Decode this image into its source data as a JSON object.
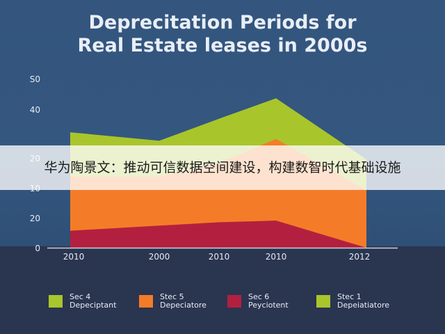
{
  "chart_data": {
    "type": "area",
    "title_lines": [
      "Deprecitation Periods for",
      "Real Estate leases in 2000s"
    ],
    "categories": [
      "2010",
      "2000",
      "2010",
      "2010",
      "2012"
    ],
    "y_tick_labels": [
      "0",
      "20",
      "10",
      "20",
      "40",
      "S0"
    ],
    "ylim": [
      0,
      50
    ],
    "series": [
      {
        "name": "Pey ciotent",
        "legend_line1": "Sec 6",
        "legend_line2": "Peyciotent",
        "color": "#b3203f",
        "values": [
          5,
          6.5,
          7.5,
          8,
          0
        ]
      },
      {
        "name": "Depeciatore",
        "legend_line1": "Stec 5",
        "legend_line2": "Depeciatore",
        "color": "#f47c28",
        "values": [
          21,
          21,
          25,
          32,
          17
        ]
      },
      {
        "name": "Depciptant",
        "legend_line1": "Sec 4",
        "legend_line2": "Depeciptant",
        "color": "#a9c52c",
        "values": [
          34,
          31.5,
          38,
          44,
          26
        ]
      }
    ],
    "legend": [
      {
        "line1": "Sec 4",
        "line2": "Depeciptant",
        "color": "#a9c52c"
      },
      {
        "line1": "Stec 5",
        "line2": "Depeciatore",
        "color": "#f47c28"
      },
      {
        "line1": "Sec 6",
        "line2": "Peyciotent",
        "color": "#b3203f"
      },
      {
        "line1": "Stec 1",
        "line2": "Depeiatiatore",
        "color": "#a9c52c"
      }
    ]
  },
  "overlay_text": "华为陶景文：推动可信数据空间建设，构建数智时代基础设施"
}
